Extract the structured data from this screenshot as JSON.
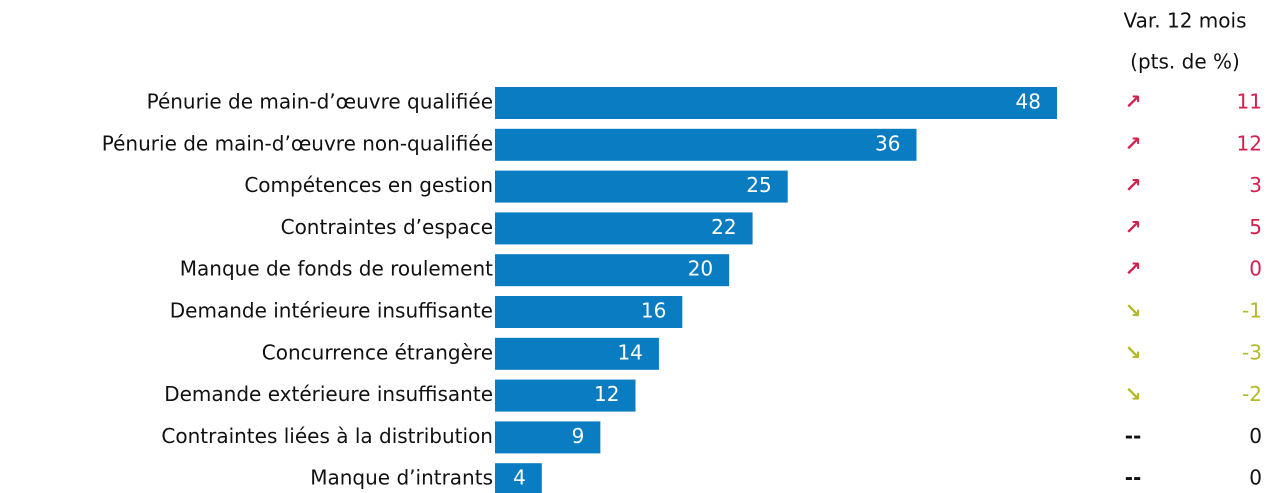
{
  "chart_data": {
    "type": "bar",
    "orientation": "horizontal",
    "color": "#0a7cc1",
    "categories": [
      "Pénurie de main-d’œuvre qualifiée",
      "Pénurie de main-d’œuvre non-qualifiée",
      "Compétences en gestion",
      "Contraintes d’espace",
      "Manque de fonds de roulement",
      "Demande intérieure insuffisante",
      "Concurrence étrangère",
      "Demande extérieure insuffisante",
      "Contraintes liées à la distribution",
      "Manque d’intrants"
    ],
    "values": [
      48,
      36,
      25,
      22,
      20,
      16,
      14,
      12,
      9,
      4
    ],
    "change_header": [
      "Var. 12 mois",
      "(pts. de %)"
    ],
    "trend": [
      "↗",
      "↗",
      "↗",
      "↗",
      "↗",
      "↘",
      "↘",
      "↘",
      "--",
      "--"
    ],
    "change": [
      11,
      12,
      3,
      5,
      0,
      -1,
      -3,
      -2,
      0,
      0
    ],
    "change_colors": [
      "#d4204f",
      "#d4204f",
      "#d4204f",
      "#d4204f",
      "#d4204f",
      "#b3ba2a",
      "#b3ba2a",
      "#b3ba2a",
      "#111111",
      "#111111"
    ]
  }
}
